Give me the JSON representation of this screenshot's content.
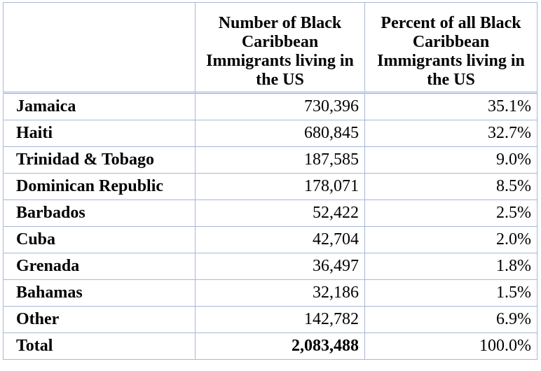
{
  "table": {
    "header": [
      "Number of Black Caribbean Immigrants living in the US",
      "Percent of all Black Caribbean Immigrants living in the US"
    ],
    "rows": [
      [
        "Jamaica",
        "730,396",
        "35.1%"
      ],
      [
        "Haiti",
        "680,845",
        "32.7%"
      ],
      [
        "Trinidad & Tobago",
        "187,585",
        "9.0%"
      ],
      [
        "Dominican Republic",
        "178,071",
        "8.5%"
      ],
      [
        "Barbados",
        "52,422",
        "2.5%"
      ],
      [
        "Cuba",
        "42,704",
        "2.0%"
      ],
      [
        "Grenada",
        "36,497",
        "1.8%"
      ],
      [
        "Bahamas",
        "32,186",
        "1.5%"
      ],
      [
        "Other",
        "142,782",
        "6.9%"
      ],
      [
        "Total",
        "2,083,488",
        "100.0%"
      ]
    ]
  }
}
